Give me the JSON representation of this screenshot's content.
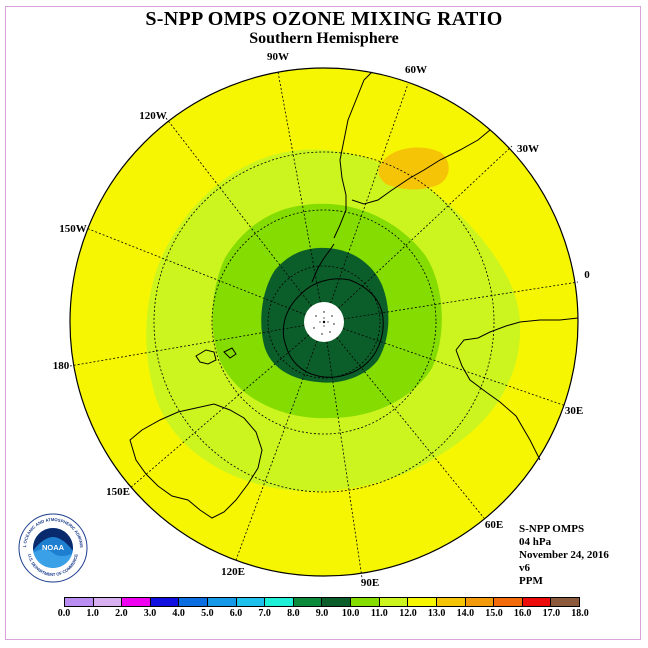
{
  "header": {
    "title": "S-NPP OMPS OZONE MIXING RATIO",
    "subtitle": "Southern Hemisphere"
  },
  "map": {
    "projection": "south-polar-stereographic",
    "longitude_labels": [
      "90W",
      "60W",
      "30W",
      "0",
      "30E",
      "60E",
      "90E",
      "120E",
      "150E",
      "180",
      "150W",
      "120W"
    ],
    "contour_levels_ppm": [
      {
        "level": "8.0-10.0",
        "region": "polar core over Antarctica",
        "color": "#0b5e2a"
      },
      {
        "level": "10.0-11.0",
        "region": "inner ring",
        "color": "#84dc00"
      },
      {
        "level": "11.0-12.0",
        "region": "outer ring",
        "color": "#ccf51f"
      },
      {
        "level": "12.0-13.0",
        "region": "mid and low latitudes",
        "color": "#f6f603"
      },
      {
        "level": "13.0-14.0",
        "region": "small patch over South America / South Atlantic",
        "color": "#f6c406"
      }
    ],
    "no_data_pole_color": "#ffffff"
  },
  "info": {
    "instrument": "S-NPP OMPS",
    "pressure_level": "04 hPa",
    "date": "November 24, 2016",
    "version": "v6",
    "units": "PPM"
  },
  "logo": {
    "text": "NOAA",
    "ring_text": "NATIONAL OCEANIC AND ATMOSPHERIC ADMINISTRATION",
    "ring_text_bottom": "U.S. DEPARTMENT OF COMMERCE"
  },
  "colorbar": {
    "ticks": [
      "0.0",
      "1.0",
      "2.0",
      "3.0",
      "4.0",
      "5.0",
      "6.0",
      "7.0",
      "8.0",
      "9.0",
      "10.0",
      "11.0",
      "12.0",
      "13.0",
      "14.0",
      "15.0",
      "16.0",
      "17.0",
      "18.0"
    ],
    "colors": [
      "#b98ef0",
      "#d8b0f0",
      "#f000f0",
      "#1010e0",
      "#0a6ee0",
      "#1598e8",
      "#1ec0ec",
      "#1ef0d8",
      "#0a8a3a",
      "#0b5e2a",
      "#84dc00",
      "#ccf51f",
      "#f6f603",
      "#f6c406",
      "#f29a0a",
      "#f26a0a",
      "#ec0a0a",
      "#8c5a3a"
    ]
  }
}
